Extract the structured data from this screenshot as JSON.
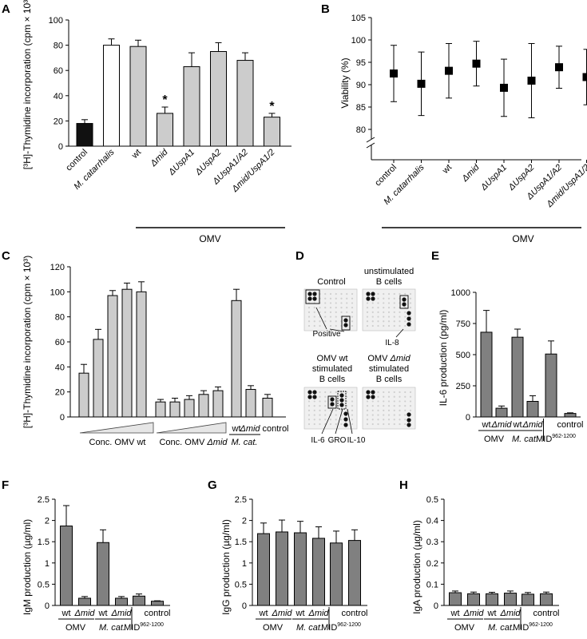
{
  "colors": {
    "gray_light": "#cccccc",
    "gray_dark": "#808080",
    "black": "#111111",
    "white": "#ffffff",
    "blot": "#f0f0f0"
  },
  "chart_data": [
    {
      "panel": "A",
      "type": "bar",
      "ylabel": "[³H]-Thymidine incorporation (cpm × 10³)",
      "ylim": [
        0,
        100
      ],
      "yticks": [
        0,
        20,
        40,
        60,
        80,
        100
      ],
      "categories": [
        "control",
        "M. catarrhalis",
        "wt",
        "Δmid",
        "ΔUspA1",
        "ΔUspA2",
        "ΔUspA1/A2",
        "Δmid/UspA1/2"
      ],
      "values": [
        18,
        80,
        79,
        26,
        63,
        75,
        68,
        23
      ],
      "errors": [
        3,
        5,
        5,
        5,
        11,
        7,
        6,
        3
      ],
      "fill": [
        "black",
        "white",
        "light",
        "light",
        "light",
        "light",
        "light",
        "light"
      ],
      "significance": [
        "",
        "",
        "",
        "*",
        "",
        "",
        "",
        "*"
      ],
      "group_label": "OMV"
    },
    {
      "panel": "B",
      "type": "scatter",
      "ylabel": "Viability (%)",
      "ylim": [
        80,
        105
      ],
      "yticks": [
        80,
        85,
        90,
        95,
        100,
        105
      ],
      "categories": [
        "control",
        "M. catarrhalis",
        "wt",
        "Δmid",
        "ΔUspA1",
        "ΔUspA2",
        "ΔUspA1/A2",
        "Δmid/UspA1/2"
      ],
      "values": [
        92.5,
        90.2,
        93.1,
        94.7,
        89.3,
        90.9,
        93.9,
        91.7
      ],
      "errors": [
        6.3,
        7.1,
        6.1,
        5.0,
        6.4,
        8.3,
        4.7,
        6.2
      ],
      "group_label": "OMV"
    },
    {
      "panel": "C",
      "type": "bar",
      "ylabel": "[³H]-Thymidine incorporation (cpm × 10³)",
      "ylim": [
        0,
        120
      ],
      "yticks": [
        0,
        20,
        40,
        60,
        80,
        100,
        120
      ],
      "values": [
        35,
        62,
        97,
        102,
        100,
        12,
        12,
        14,
        18,
        21,
        93,
        22,
        15
      ],
      "errors": [
        7,
        8,
        4,
        5,
        8,
        2,
        3,
        3,
        3,
        3,
        9,
        3,
        3
      ],
      "group1_label": "Conc. OMV wt",
      "group2_prefix": "Conc. OMV",
      "group2_suffix": "Δmid",
      "label_wt": "wt",
      "label_dmid": "Δmid",
      "label_control": "control",
      "label_mcat": "M. cat."
    },
    {
      "panel": "E",
      "type": "bar",
      "ylabel": "IL-6 production (pg/ml)",
      "ylim": [
        0,
        1000
      ],
      "yticks": [
        0,
        250,
        500,
        750,
        1000
      ],
      "values": [
        680,
        70,
        640,
        125,
        505,
        28
      ],
      "errors": [
        175,
        18,
        65,
        45,
        105,
        5
      ]
    },
    {
      "panel": "F",
      "type": "bar",
      "ylabel": "IgM production (µg/ml)",
      "ylim": [
        0,
        2.5
      ],
      "yticks": [
        0,
        0.5,
        1,
        1.5,
        2,
        2.5
      ],
      "values": [
        1.87,
        0.17,
        1.48,
        0.17,
        0.22,
        0.1
      ],
      "errors": [
        0.48,
        0.04,
        0.3,
        0.04,
        0.05,
        0.01
      ]
    },
    {
      "panel": "G",
      "type": "bar",
      "ylabel": "IgG production (µg/ml)",
      "ylim": [
        0,
        2.5
      ],
      "yticks": [
        0,
        0.5,
        1,
        1.5,
        2,
        2.5
      ],
      "values": [
        1.69,
        1.73,
        1.71,
        1.58,
        1.47,
        1.53
      ],
      "errors": [
        0.25,
        0.28,
        0.27,
        0.27,
        0.28,
        0.25
      ]
    },
    {
      "panel": "H",
      "type": "bar",
      "ylabel": "IgA production (µg/ml)",
      "ylim": [
        0,
        0.5
      ],
      "yticks": [
        0,
        0.1,
        0.2,
        0.3,
        0.4,
        0.5
      ],
      "values": [
        0.06,
        0.055,
        0.055,
        0.058,
        0.053,
        0.055
      ],
      "errors": [
        0.008,
        0.008,
        0.007,
        0.01,
        0.008,
        0.008
      ]
    }
  ],
  "shared_group": {
    "wt": "wt",
    "dmid": "Δmid",
    "omv": "OMV",
    "mcat": "M. cat.",
    "mid": "MID",
    "mid_sup": "962-1200",
    "control": "control"
  },
  "blot_d": {
    "panel": "D",
    "control_title": "Control",
    "unstim_title_1": "unstimulated",
    "unstim_title_2": "B cells",
    "omvwt_title_1": "OMV wt",
    "omvwt_title_2": "stimulated",
    "omvwt_title_3": "B cells",
    "omvmid_title_1_prefix": "OMV",
    "omvmid_title_1_mid": "Δmid",
    "omvmid_title_2": "stimulated",
    "omvmid_title_3": "B cells",
    "positive": "Positive",
    "il8": "IL-8",
    "il6": "IL-6",
    "gro": "GRO",
    "il10": "IL-10"
  },
  "panel_letters": [
    "A",
    "B",
    "C",
    "D",
    "E",
    "F",
    "G",
    "H"
  ]
}
